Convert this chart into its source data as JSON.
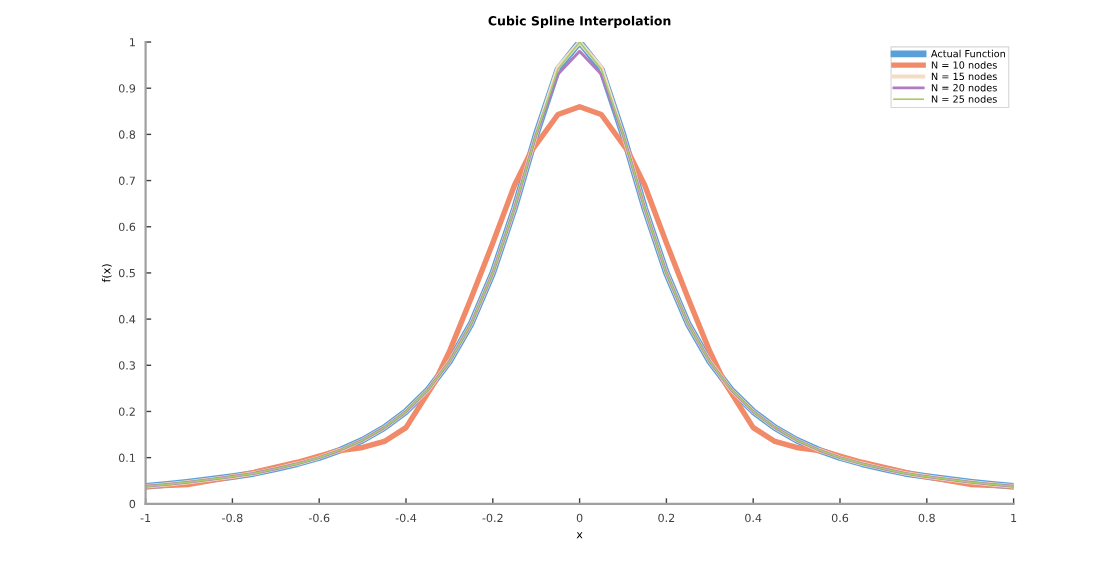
{
  "chart_data": {
    "type": "line",
    "title": "Cubic Spline Interpolation",
    "xlabel": "x",
    "ylabel": "f(x)",
    "x": [
      -1,
      -0.95,
      -0.9,
      -0.85,
      -0.8,
      -0.75,
      -0.7,
      -0.65,
      -0.6,
      -0.55,
      -0.5,
      -0.45,
      -0.4,
      -0.35,
      -0.3,
      -0.25,
      -0.2,
      -0.15,
      -0.1,
      -0.05,
      0,
      0.05,
      0.1,
      0.15,
      0.2,
      0.25,
      0.3,
      0.35,
      0.4,
      0.45,
      0.5,
      0.55,
      0.6,
      0.65,
      0.7,
      0.75,
      0.8,
      0.85,
      0.9,
      0.95,
      1
    ],
    "series": [
      {
        "name": "Actual Function",
        "color": "#5aa0d8",
        "values": [
          0.038,
          0.042,
          0.047,
          0.053,
          0.059,
          0.066,
          0.076,
          0.087,
          0.1,
          0.117,
          0.138,
          0.165,
          0.2,
          0.246,
          0.308,
          0.39,
          0.5,
          0.64,
          0.8,
          0.941,
          1,
          0.941,
          0.8,
          0.64,
          0.5,
          0.39,
          0.308,
          0.246,
          0.2,
          0.165,
          0.138,
          0.117,
          0.1,
          0.087,
          0.076,
          0.066,
          0.059,
          0.053,
          0.047,
          0.042,
          0.038
        ]
      },
      {
        "name": "N = 10 nodes",
        "color": "#f08a68",
        "x": [
          -1,
          -0.9,
          -0.778,
          -0.65,
          -0.556,
          -0.5,
          -0.45,
          -0.4,
          -0.333,
          -0.3,
          -0.25,
          -0.2,
          -0.15,
          -0.111,
          -0.05,
          0,
          0.05,
          0.111,
          0.15,
          0.2,
          0.25,
          0.3,
          0.333,
          0.4,
          0.45,
          0.5,
          0.556,
          0.65,
          0.778,
          0.9,
          1
        ],
        "values": [
          0.038,
          0.042,
          0.062,
          0.09,
          0.115,
          0.122,
          0.135,
          0.165,
          0.265,
          0.33,
          0.445,
          0.565,
          0.69,
          0.764,
          0.843,
          0.86,
          0.843,
          0.764,
          0.69,
          0.565,
          0.445,
          0.33,
          0.265,
          0.165,
          0.135,
          0.122,
          0.115,
          0.09,
          0.062,
          0.042,
          0.038
        ]
      },
      {
        "name": "N = 15 nodes",
        "color": "#f6dcc4",
        "values": [
          0.038,
          0.042,
          0.047,
          0.053,
          0.059,
          0.066,
          0.076,
          0.087,
          0.1,
          0.117,
          0.138,
          0.165,
          0.2,
          0.246,
          0.308,
          0.39,
          0.5,
          0.64,
          0.8,
          0.945,
          1,
          0.945,
          0.8,
          0.64,
          0.5,
          0.39,
          0.308,
          0.246,
          0.2,
          0.165,
          0.138,
          0.117,
          0.1,
          0.087,
          0.076,
          0.066,
          0.059,
          0.053,
          0.047,
          0.042,
          0.038
        ]
      },
      {
        "name": "N = 20 nodes",
        "color": "#b07cc0",
        "values": [
          0.038,
          0.042,
          0.047,
          0.053,
          0.059,
          0.066,
          0.076,
          0.087,
          0.1,
          0.117,
          0.138,
          0.165,
          0.2,
          0.246,
          0.308,
          0.39,
          0.5,
          0.64,
          0.8,
          0.93,
          0.98,
          0.93,
          0.8,
          0.64,
          0.5,
          0.39,
          0.308,
          0.246,
          0.2,
          0.165,
          0.138,
          0.117,
          0.1,
          0.087,
          0.076,
          0.066,
          0.059,
          0.053,
          0.047,
          0.042,
          0.038
        ]
      },
      {
        "name": "N = 25 nodes",
        "color": "#a6cc6c",
        "values": [
          0.038,
          0.042,
          0.047,
          0.053,
          0.059,
          0.066,
          0.076,
          0.087,
          0.1,
          0.117,
          0.138,
          0.165,
          0.2,
          0.246,
          0.308,
          0.39,
          0.5,
          0.64,
          0.8,
          0.941,
          1,
          0.941,
          0.8,
          0.64,
          0.5,
          0.39,
          0.308,
          0.246,
          0.2,
          0.165,
          0.138,
          0.117,
          0.1,
          0.087,
          0.076,
          0.066,
          0.059,
          0.053,
          0.047,
          0.042,
          0.038
        ]
      }
    ],
    "xlim": [
      -1,
      1
    ],
    "xticks": [
      -1,
      -0.8,
      -0.6,
      -0.4,
      -0.2,
      0,
      0.2,
      0.4,
      0.6,
      0.8,
      1
    ],
    "ylim": [
      0,
      1
    ],
    "yticks": [
      0,
      0.1,
      0.2,
      0.3,
      0.4,
      0.5,
      0.6,
      0.7,
      0.8,
      0.9,
      1
    ],
    "legend": "top right",
    "grid": false,
    "marker": "none",
    "line_style": "solid"
  }
}
